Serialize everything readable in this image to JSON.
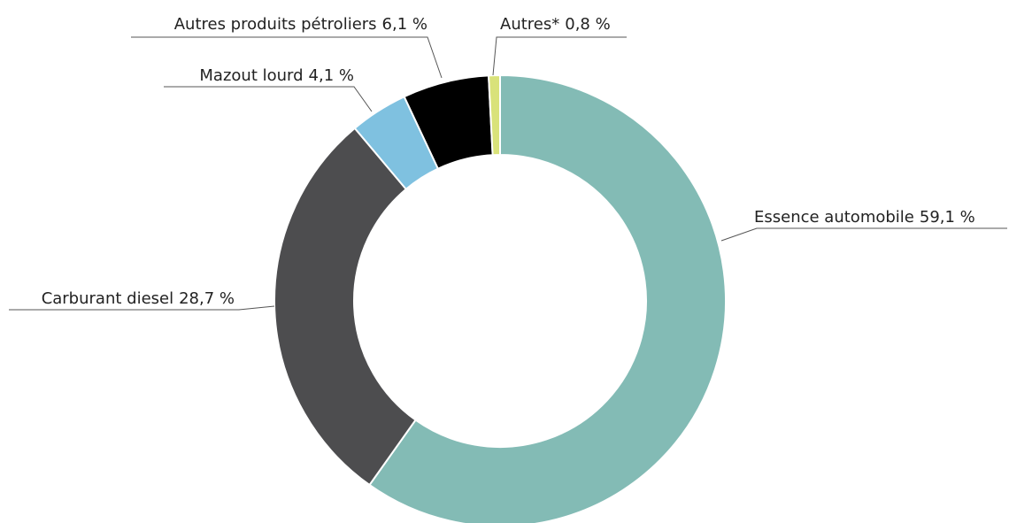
{
  "chart_data": {
    "type": "donut",
    "categories": [
      "Essence automobile",
      "Carburant diesel",
      "Mazout lourd",
      "Autres produits pétroliers",
      "Autres*"
    ],
    "values": [
      59.1,
      28.7,
      4.1,
      6.1,
      0.8
    ],
    "value_labels": [
      "59,1 %",
      "28,7 %",
      "4,1 %",
      "6,1 %",
      "0,8 %"
    ],
    "colors": [
      "#83bbb5",
      "#4d4d4f",
      "#7fc1e0",
      "#000000",
      "#d9e27a"
    ]
  }
}
